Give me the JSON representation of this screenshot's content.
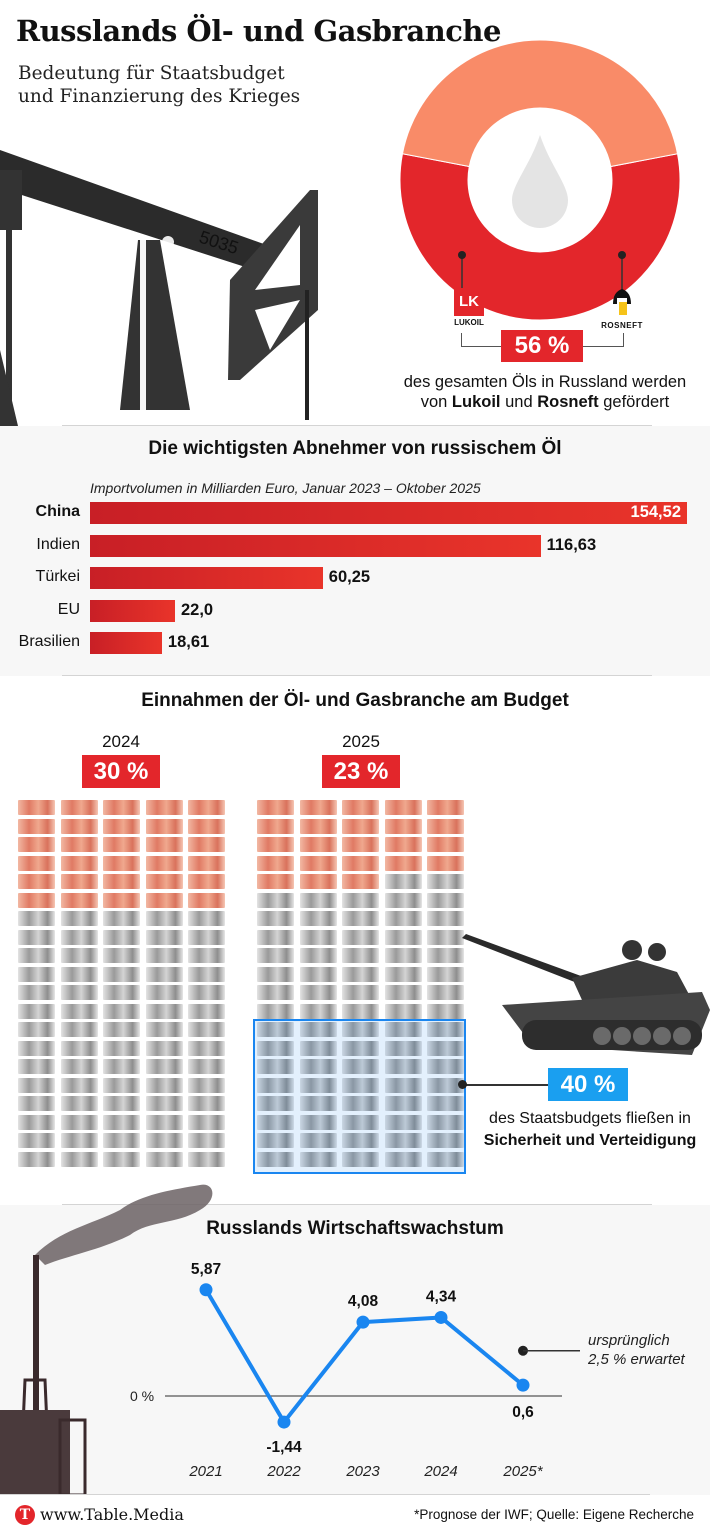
{
  "header": {
    "title": "Russlands Öl- und Gasbranche",
    "subtitle_line1": "Bedeutung für Staatsbudget",
    "subtitle_line2": "und Finanzierung des Krieges"
  },
  "donut": {
    "share_percent": 56,
    "label": "56 %",
    "caption_line1": "des gesamten Öls in Russland werden",
    "caption_pre": "von ",
    "caption_company1": "Lukoil",
    "caption_mid": " und ",
    "caption_company2": "Rosneft",
    "caption_post": " gefördert",
    "logo_left_text": "LUKOIL",
    "logo_right_text": "ROSNEFT",
    "colors": {
      "main": "#e3262b",
      "rest": "#f98b68",
      "center_icon": "oil-drop-icon"
    }
  },
  "chart_data": [
    {
      "type": "bar",
      "title": "Die wichtigsten Abnehmer von russischem Öl",
      "subtitle": "Importvolumen in Milliarden Euro, Januar 2023 – Oktober 2025",
      "categories": [
        "China",
        "Indien",
        "Türkei",
        "EU",
        "Brasilien"
      ],
      "values": [
        154.52,
        116.63,
        60.25,
        22.0,
        18.61
      ],
      "value_labels": [
        "154,52",
        "116,63",
        "60,25",
        "22,0",
        "18,61"
      ],
      "orientation": "horizontal",
      "color": "#e3262b",
      "xlim": [
        0,
        154.52
      ]
    },
    {
      "type": "pictogram",
      "title": "Einnahmen der Öl- und Gasbranche am Budget",
      "groups": [
        {
          "year": "2024",
          "label": "30 %",
          "value": 30,
          "total": 100
        },
        {
          "year": "2025",
          "label": "23 %",
          "value": 23,
          "total": 100
        }
      ],
      "highlight": {
        "label": "40 %",
        "value": 40,
        "caption_line1": "des Staatsbudgets fließen in",
        "caption_line2": "Sicherheit und Verteidigung",
        "color": "#1a9ff0"
      }
    },
    {
      "type": "line",
      "title": "Russlands Wirtschaftswachstum",
      "x": [
        "2021",
        "2022",
        "2023",
        "2024",
        "2025*"
      ],
      "values": [
        5.87,
        -1.44,
        4.08,
        4.34,
        0.6
      ],
      "value_labels": [
        "5,87",
        "-1,44",
        "4,08",
        "4,34",
        "0,6"
      ],
      "zero_label": "0 %",
      "color": "#1a86f0",
      "annotation": {
        "x": "2025*",
        "value": 2.5,
        "text_line1": "ursprünglich",
        "text_line2": "2,5 % erwartet"
      }
    }
  ],
  "footer": {
    "brand": "www.Table.Media",
    "logo_letter": "T",
    "source": "*Prognose der IWF; Quelle: Eigene Recherche"
  }
}
